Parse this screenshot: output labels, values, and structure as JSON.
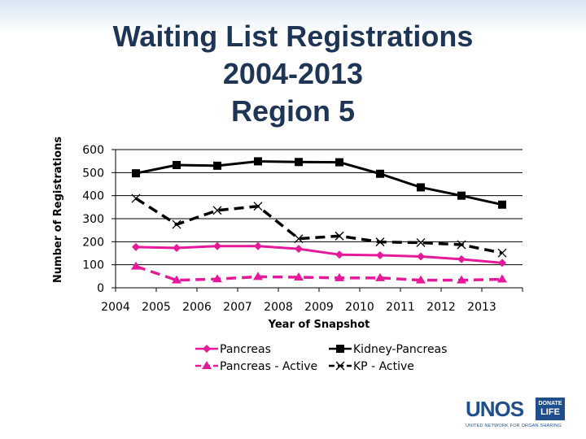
{
  "chart_data": {
    "type": "line",
    "title_lines": [
      "Waiting List Registrations",
      "2004-2013",
      "Region 5"
    ],
    "xlabel": "Year of Snapshot",
    "ylabel": "Number of Registrations",
    "x": [
      "2004",
      "2005",
      "2006",
      "2007",
      "2008",
      "2009",
      "2010",
      "2011",
      "2012",
      "2013"
    ],
    "ylim": [
      0,
      600
    ],
    "yticks": [
      0,
      100,
      200,
      300,
      400,
      500,
      600
    ],
    "grid": "horizontal",
    "legend_position": "bottom",
    "series": [
      {
        "name": "Pancreas",
        "color": "#e6199b",
        "marker": "diamond",
        "dash": "solid",
        "values": [
          177,
          173,
          181,
          181,
          169,
          144,
          141,
          136,
          124,
          108
        ]
      },
      {
        "name": "Kidney-Pancreas",
        "color": "#000000",
        "marker": "square",
        "dash": "solid",
        "values": [
          497,
          533,
          530,
          549,
          546,
          545,
          495,
          436,
          400,
          361
        ]
      },
      {
        "name": "Pancreas - Active",
        "color": "#e6199b",
        "marker": "triangle",
        "dash": "dashed",
        "values": [
          93,
          33,
          38,
          48,
          46,
          43,
          43,
          33,
          33,
          37
        ]
      },
      {
        "name": "KP - Active",
        "color": "#000000",
        "marker": "x",
        "dash": "dashed",
        "values": [
          388,
          275,
          336,
          354,
          213,
          225,
          199,
          196,
          187,
          151
        ]
      }
    ]
  },
  "logo": {
    "name": "UNOS",
    "badge_line1": "DONATE",
    "badge_line2": "LIFE",
    "tagline": "UNITED NETWORK FOR ORGAN SHARING"
  }
}
